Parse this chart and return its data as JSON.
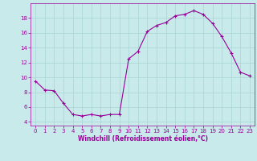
{
  "x": [
    0,
    1,
    2,
    3,
    4,
    5,
    6,
    7,
    8,
    9,
    10,
    11,
    12,
    13,
    14,
    15,
    16,
    17,
    18,
    19,
    20,
    21,
    22,
    23
  ],
  "y": [
    9.5,
    8.3,
    8.2,
    6.5,
    5.0,
    4.8,
    5.0,
    4.8,
    5.0,
    5.0,
    12.5,
    13.5,
    16.2,
    17.0,
    17.4,
    18.3,
    18.5,
    19.0,
    18.5,
    17.3,
    15.5,
    13.3,
    10.7,
    10.2
  ],
  "line_color": "#990099",
  "marker": "+",
  "marker_size": 3,
  "bg_color": "#c8eaea",
  "grid_color": "#aad4d4",
  "xlabel": "Windchill (Refroidissement éolien,°C)",
  "xlabel_color": "#990099",
  "tick_color": "#990099",
  "ylim": [
    3.5,
    20.0
  ],
  "xlim": [
    -0.5,
    23.5
  ],
  "yticks": [
    4,
    6,
    8,
    10,
    12,
    14,
    16,
    18
  ],
  "xticks": [
    0,
    1,
    2,
    3,
    4,
    5,
    6,
    7,
    8,
    9,
    10,
    11,
    12,
    13,
    14,
    15,
    16,
    17,
    18,
    19,
    20,
    21,
    22,
    23
  ]
}
